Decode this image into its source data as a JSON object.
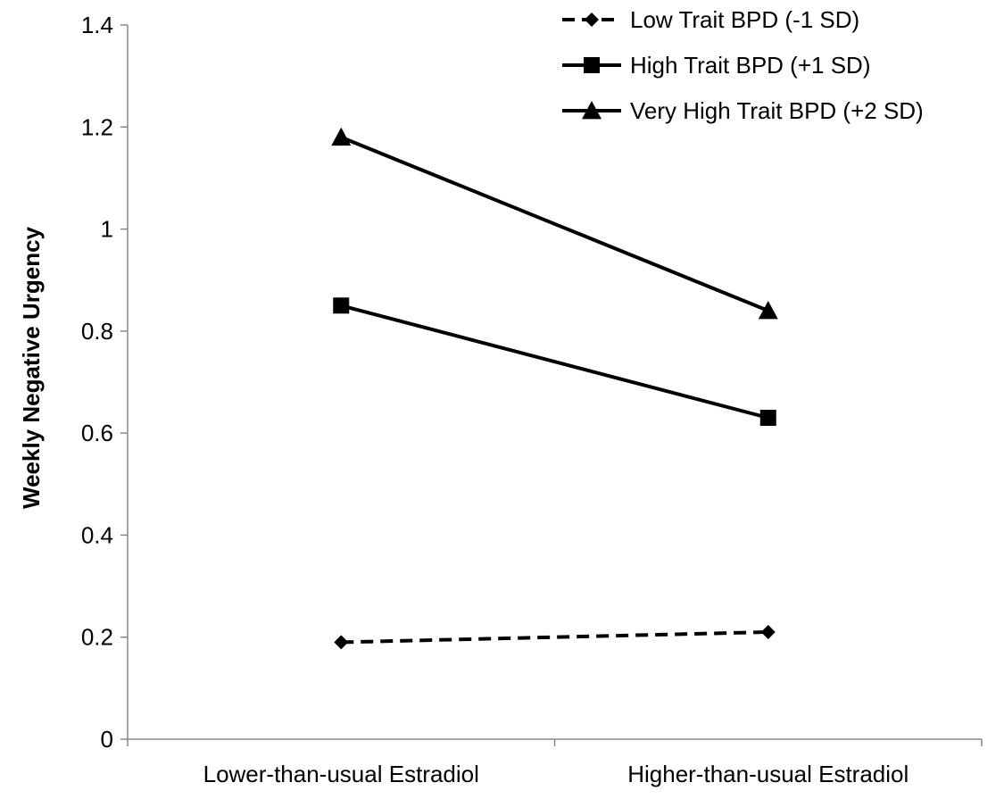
{
  "chart_data": {
    "type": "line",
    "title": "",
    "xlabel": "",
    "ylabel": "Weekly Negative Urgency",
    "categories": [
      "Lower-than-usual Estradiol",
      "Higher-than-usual Estradiol"
    ],
    "ylim": [
      0,
      1.4
    ],
    "yticks": [
      "0",
      "0.2",
      "0.4",
      "0.6",
      "0.8",
      "1",
      "1.2",
      "1.4"
    ],
    "grid": false,
    "legend_position": "top-right",
    "series": [
      {
        "name": "Low Trait BPD (-1 SD)",
        "values": [
          0.19,
          0.21
        ],
        "line_style": "dashed",
        "marker": "diamond",
        "color": "#000000"
      },
      {
        "name": "High Trait BPD (+1 SD)",
        "values": [
          0.85,
          0.63
        ],
        "line_style": "solid",
        "marker": "square",
        "color": "#000000"
      },
      {
        "name": "Very High Trait BPD (+2 SD)",
        "values": [
          1.18,
          0.84
        ],
        "line_style": "solid",
        "marker": "triangle",
        "color": "#000000"
      }
    ]
  }
}
